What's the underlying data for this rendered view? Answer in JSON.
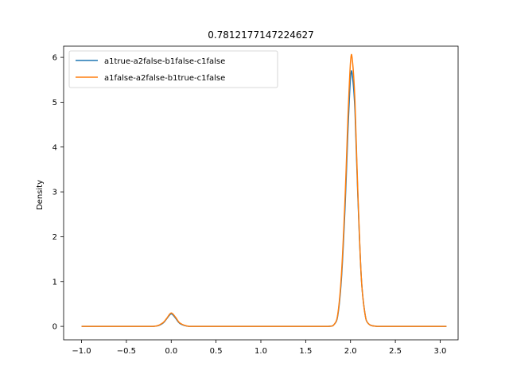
{
  "chart_data": {
    "type": "line",
    "title": "0.7812177147224627",
    "xlabel": "",
    "ylabel": "Density",
    "xlim": [
      -1.2,
      3.2
    ],
    "ylim": [
      -0.3,
      6.25
    ],
    "xticks": [
      -1.0,
      -0.5,
      0.0,
      0.5,
      1.0,
      1.5,
      2.0,
      2.5,
      3.0
    ],
    "xtick_labels": [
      "−1.0",
      "−0.5",
      "0.0",
      "0.5",
      "1.0",
      "1.5",
      "2.0",
      "2.5",
      "3.0"
    ],
    "yticks": [
      0,
      1,
      2,
      3,
      4,
      5,
      6
    ],
    "ytick_labels": [
      "0",
      "1",
      "2",
      "3",
      "4",
      "5",
      "6"
    ],
    "grid": false,
    "legend_position": "top-left",
    "series": [
      {
        "name": "a1true-a2false-b1false-c1false",
        "color": "#1f77b4",
        "x": [
          -1.0,
          -0.5,
          -0.2,
          -0.1,
          -0.05,
          0.0,
          0.05,
          0.1,
          0.2,
          0.4,
          1.0,
          1.5,
          1.75,
          1.82,
          1.86,
          1.9,
          1.94,
          1.97,
          2.0,
          2.02,
          2.05,
          2.08,
          2.12,
          2.16,
          2.2,
          2.3,
          2.5,
          3.07
        ],
        "y": [
          0.0,
          0.0,
          0.0,
          0.06,
          0.17,
          0.28,
          0.18,
          0.06,
          0.0,
          0.0,
          0.0,
          0.0,
          0.0,
          0.05,
          0.27,
          1.1,
          2.7,
          4.3,
          5.55,
          5.6,
          4.8,
          3.0,
          1.1,
          0.3,
          0.06,
          0.0,
          0.0,
          0.0
        ]
      },
      {
        "name": "a1false-a2false-b1true-c1false",
        "color": "#ff7f0e",
        "x": [
          -1.0,
          -0.5,
          -0.2,
          -0.1,
          -0.05,
          0.0,
          0.05,
          0.1,
          0.2,
          0.4,
          1.0,
          1.5,
          1.75,
          1.82,
          1.86,
          1.9,
          1.94,
          1.97,
          2.0,
          2.02,
          2.05,
          2.08,
          2.12,
          2.16,
          2.2,
          2.3,
          2.5,
          3.07
        ],
        "y": [
          0.0,
          0.0,
          0.0,
          0.07,
          0.18,
          0.3,
          0.2,
          0.07,
          0.0,
          0.0,
          0.0,
          0.0,
          0.0,
          0.05,
          0.3,
          1.2,
          2.9,
          4.6,
          5.9,
          5.95,
          5.0,
          3.1,
          1.1,
          0.3,
          0.06,
          0.0,
          0.0,
          0.0
        ]
      }
    ]
  }
}
